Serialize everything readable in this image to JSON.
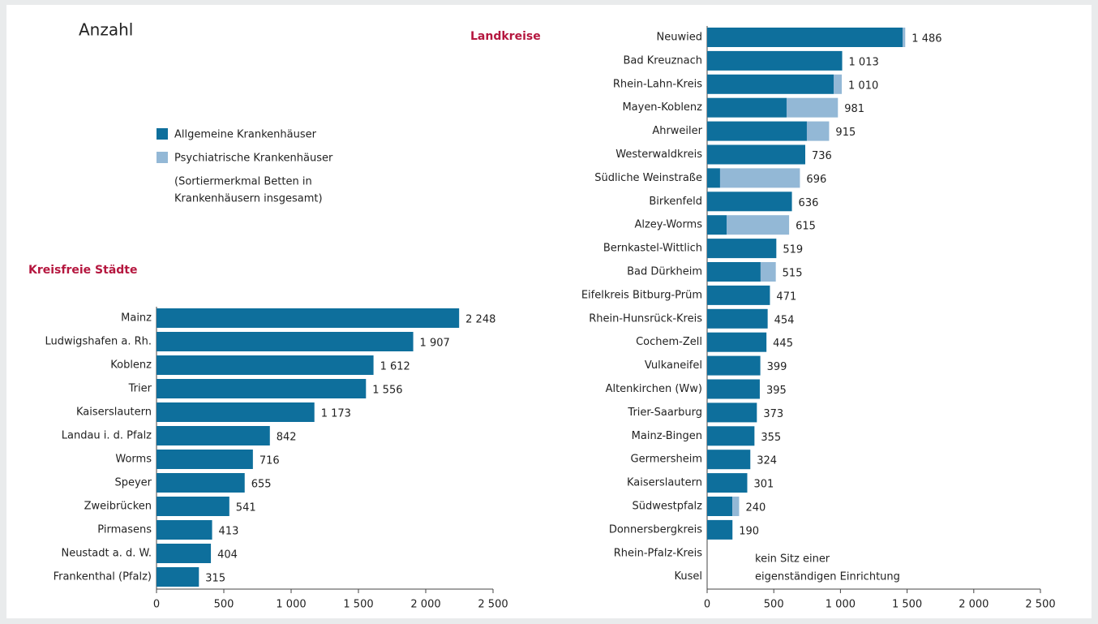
{
  "label": "Anzahl",
  "note": [
    "(Sortiermerkmal Betten in",
    "Krankenhäusern insgesamt)"
  ],
  "chart_data": [
    {
      "type": "bar",
      "orientation": "horizontal",
      "title": "Kreisfreie Städte",
      "categories": [
        "Mainz",
        "Ludwigshafen a. Rh.",
        "Koblenz",
        "Trier",
        "Kaiserslautern",
        "Landau i. d. Pfalz",
        "Worms",
        "Speyer",
        "Zweibrücken",
        "Pirmasens",
        "Neustadt a. d. W.",
        "Frankenthal (Pfalz)"
      ],
      "values": [
        2248,
        1907,
        1612,
        1556,
        1173,
        842,
        716,
        655,
        541,
        413,
        404,
        315
      ],
      "value_labels": [
        "2 248",
        "1 907",
        "1 612",
        "1 556",
        "1 173",
        "842",
        "716",
        "655",
        "541",
        "413",
        "404",
        "315"
      ],
      "color": "#0e6f9c",
      "xlim": [
        0,
        2500
      ],
      "xticks": [
        0,
        500,
        {
          "value": 1000,
          "label": "1 000"
        },
        {
          "value": 1500,
          "label": "1 500"
        },
        {
          "value": 2000,
          "label": "2 000"
        },
        {
          "value": 2500,
          "label": "2 500"
        }
      ]
    },
    {
      "type": "stacked_bar",
      "orientation": "horizontal",
      "title": "Landkreise",
      "categories": [
        "Neuwied",
        "Bad Kreuznach",
        "Rhein-Lahn-Kreis",
        "Mayen-Koblenz",
        "Ahrweiler",
        "Westerwaldkreis",
        "Südliche Weinstraße",
        "Birkenfeld",
        "Alzey-Worms",
        "Bernkastel-Wittlich",
        "Bad Dürkheim",
        "Eifelkreis Bitburg-Prüm",
        "Rhein-Hunsrück-Kreis",
        "Cochem-Zell",
        "Vulkaneifel",
        "Altenkirchen (Ww)",
        "Trier-Saarburg",
        "Mainz-Bingen",
        "Germersheim",
        "Kaiserslautern",
        "Südwestpfalz",
        "Donnersbergkreis",
        "Rhein-Pfalz-Kreis",
        "Kusel"
      ],
      "series": [
        {
          "name": "Allgemeine Krankenhäuser",
          "color": "#0e6f9c",
          "values": [
            1466,
            1013,
            949,
            596,
            748,
            736,
            97,
            636,
            146,
            519,
            401,
            471,
            454,
            445,
            399,
            395,
            373,
            355,
            324,
            301,
            189,
            190,
            null,
            null
          ]
        },
        {
          "name": "Psychiatrische Krankenhäuser",
          "color": "#93b8d6",
          "values": [
            20,
            0,
            61,
            385,
            167,
            0,
            599,
            0,
            469,
            0,
            114,
            0,
            0,
            0,
            0,
            0,
            0,
            0,
            0,
            0,
            51,
            0,
            null,
            null
          ]
        }
      ],
      "totals": [
        1486,
        1013,
        1010,
        981,
        915,
        736,
        696,
        636,
        615,
        519,
        515,
        471,
        454,
        445,
        399,
        395,
        373,
        355,
        324,
        301,
        240,
        190,
        null,
        null
      ],
      "total_labels": [
        "1 486",
        "1 013",
        "1 010",
        "981",
        "915",
        "736",
        "696",
        "636",
        "615",
        "519",
        "515",
        "471",
        "454",
        "445",
        "399",
        "395",
        "373",
        "355",
        "324",
        "301",
        "240",
        "190",
        null,
        null
      ],
      "annotation": [
        "kein Sitz einer",
        "eigenständigen Einrichtung"
      ],
      "xlim": [
        0,
        2500
      ],
      "xticks": [
        0,
        500,
        {
          "value": 1000,
          "label": "1 000"
        },
        {
          "value": 1500,
          "label": "1 500"
        },
        {
          "value": 2000,
          "label": "2 000"
        },
        {
          "value": 2500,
          "label": "2 500"
        }
      ]
    }
  ]
}
